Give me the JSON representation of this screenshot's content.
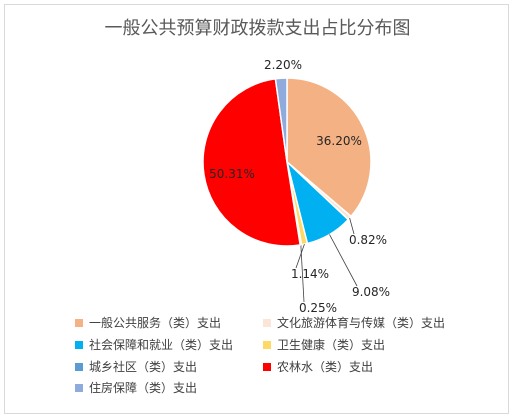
{
  "chart_data": {
    "type": "pie",
    "title": "一般公共预算财政拨款支出占比分布图",
    "slices": [
      {
        "label": "一般公共服务（类）支出",
        "value": 36.2,
        "display": "36.20%",
        "color": "#f4b183"
      },
      {
        "label": "文化旅游体育与传媒（类）支出",
        "value": 0.82,
        "display": "0.82%",
        "color": "#fbe5d6"
      },
      {
        "label": "社会保障和就业（类）支出",
        "value": 9.08,
        "display": "9.08%",
        "color": "#00b0f0"
      },
      {
        "label": "卫生健康（类）支出",
        "value": 1.14,
        "display": "1.14%",
        "color": "#ffd966"
      },
      {
        "label": "城乡社区（类）支出",
        "value": 0.25,
        "display": "0.25%",
        "color": "#5b9bd5"
      },
      {
        "label": "农林水（类）支出",
        "value": 50.31,
        "display": "50.31%",
        "color": "#ff0000"
      },
      {
        "label": "住房保障（类）支出",
        "value": 2.2,
        "display": "2.20%",
        "color": "#8faadc"
      }
    ],
    "legend_position": "bottom"
  }
}
